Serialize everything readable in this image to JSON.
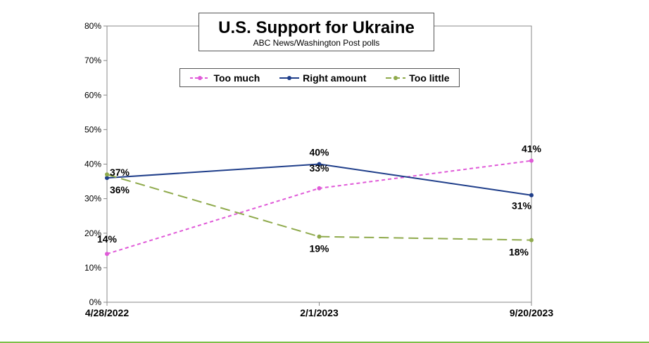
{
  "chart_data": {
    "type": "line",
    "title": "U.S. Support for Ukraine",
    "subtitle": "ABC News/Washington Post polls",
    "categories": [
      "4/28/2022",
      "2/1/2023",
      "9/20/2023"
    ],
    "ylim": [
      0,
      80
    ],
    "yticks": [
      "0%",
      "10%",
      "20%",
      "30%",
      "40%",
      "50%",
      "60%",
      "70%",
      "80%"
    ],
    "grid": false,
    "legend_position": "top",
    "series": [
      {
        "name": "Too much",
        "values": [
          14,
          33,
          41
        ],
        "labels": [
          "14%",
          "33%",
          "41%"
        ],
        "color": "#e05ad8",
        "style": "dashed"
      },
      {
        "name": "Right amount",
        "values": [
          36,
          40,
          31
        ],
        "labels": [
          "36%",
          "40%",
          "31%"
        ],
        "color": "#1f3e8a",
        "style": "solid"
      },
      {
        "name": "Too little",
        "values": [
          37,
          19,
          18
        ],
        "labels": [
          "37%",
          "19%",
          "18%"
        ],
        "color": "#8faa4c",
        "style": "long-dash"
      }
    ]
  }
}
